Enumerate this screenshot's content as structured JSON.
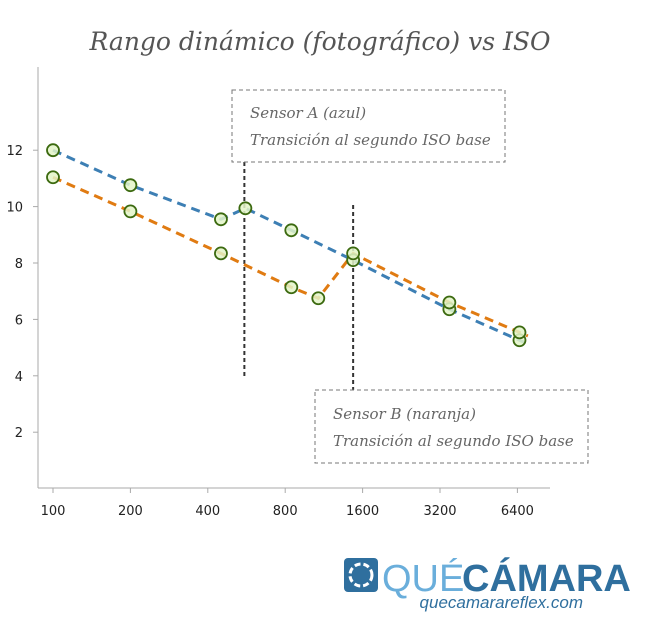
{
  "chart_data": {
    "type": "line",
    "title": "Rango dinámico (fotográfico) vs ISO",
    "xlabel": "",
    "ylabel": "",
    "x_scale": "log2",
    "x_ticks": [
      "100",
      "200",
      "400",
      "800",
      "1600",
      "3200",
      "6400"
    ],
    "y_ticks": [
      "2",
      "4",
      "6",
      "8",
      "10",
      "12"
    ],
    "ylim": [
      0,
      14
    ],
    "grid": false,
    "series": [
      {
        "color": "#3d7fb4",
        "points": [
          [
            100,
            12.0
          ],
          [
            200,
            10.76
          ],
          [
            450,
            9.55
          ],
          [
            560,
            9.94
          ],
          [
            845,
            9.16
          ],
          [
            1470,
            8.1
          ],
          [
            3480,
            6.36
          ],
          [
            6520,
            5.26
          ]
        ]
      },
      {
        "color": "#e07b12",
        "points": [
          [
            100,
            11.04
          ],
          [
            200,
            9.83
          ],
          [
            450,
            8.34
          ],
          [
            845,
            7.14
          ],
          [
            1076,
            6.75
          ],
          [
            1470,
            8.34
          ],
          [
            3480,
            6.6
          ],
          [
            6520,
            5.54
          ]
        ]
      }
    ],
    "marker": {
      "fill": "#e3f5c8",
      "stroke": "#3c6a10"
    },
    "annotations": [
      {
        "line1": "Sensor A (azul)",
        "line2": "Transición al segundo ISO base",
        "x": 560
      },
      {
        "line1": "Sensor B (naranja)",
        "line2": "Transición al segundo ISO base",
        "x": 1470
      }
    ]
  },
  "logo": {
    "brand_light": "QUÉ",
    "brand_bold": "CÁMARA",
    "url": "quecamarareflex.com"
  }
}
